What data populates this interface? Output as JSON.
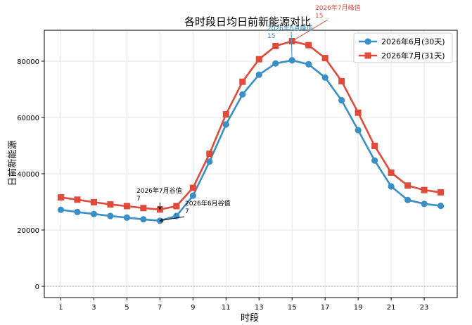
{
  "chart_data": {
    "type": "line",
    "title": "各时段日均日前新能源对比",
    "xlabel": "时段",
    "ylabel": "日前新能源",
    "x": [
      1,
      2,
      3,
      4,
      5,
      6,
      7,
      8,
      9,
      10,
      11,
      12,
      13,
      14,
      15,
      16,
      17,
      18,
      19,
      20,
      21,
      22,
      23,
      24
    ],
    "xticks": [
      1,
      3,
      5,
      7,
      9,
      11,
      13,
      15,
      17,
      19,
      21,
      23
    ],
    "yticks": [
      0,
      20000,
      40000,
      60000,
      80000
    ],
    "ylim": [
      -4000,
      91000
    ],
    "xlim": [
      0,
      25
    ],
    "grid": true,
    "legend_position": "top-right",
    "series": [
      {
        "name": "2026年6月(30天)",
        "color": "#3a8fc7",
        "marker": "circle",
        "values": [
          27200,
          26400,
          25700,
          25000,
          24400,
          23800,
          23300,
          25000,
          32200,
          44300,
          57500,
          68200,
          75200,
          79200,
          80300,
          78900,
          74200,
          66100,
          55500,
          44700,
          35500,
          30700,
          29300,
          28600
        ]
      },
      {
        "name": "2026年7月(31天)",
        "color": "#e04a3a",
        "marker": "square",
        "values": [
          31600,
          30800,
          29900,
          29100,
          28500,
          27800,
          27300,
          28500,
          35000,
          47100,
          61100,
          72700,
          80700,
          85400,
          87100,
          85700,
          81100,
          72900,
          61700,
          49900,
          40400,
          35800,
          34200,
          33400
        ]
      }
    ],
    "annotations": [
      {
        "text": "2026年7月峰值\n15",
        "x": 15,
        "y": 87100,
        "color": "#e04a3a"
      },
      {
        "text": "2026年6月峰值\n15",
        "x": 15,
        "y": 80300,
        "color": "#3a8fc7"
      },
      {
        "text": "2026年7月谷值\n7",
        "x": 7,
        "y": 27300,
        "color": "#000000"
      },
      {
        "text": "2026年6月谷值\n7",
        "x": 7,
        "y": 23300,
        "color": "#000000"
      }
    ]
  }
}
